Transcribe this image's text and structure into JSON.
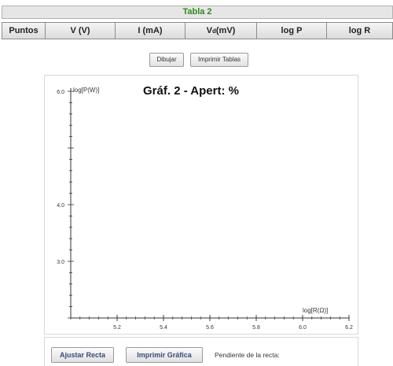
{
  "table": {
    "title": "Tabla 2",
    "columns": [
      {
        "label": "Puntos"
      },
      {
        "label": "V (V)"
      },
      {
        "label": "I (mA)"
      },
      {
        "label": "V",
        "sub": "d",
        "suffix": " (mV)"
      },
      {
        "label": "log P"
      },
      {
        "label": "log R"
      }
    ]
  },
  "toolbar": {
    "draw_label": "Dibujar",
    "print_tables_label": "Imprimir Tablas"
  },
  "chart_data": {
    "type": "scatter",
    "title": "Gráf. 2 - Apert:  %",
    "ylabel": "log[P(W)]",
    "xlabel": "log[R(Ω)]",
    "x_ticks": [
      "5.2",
      "5.4",
      "5.6",
      "5.8",
      "6.0",
      "6.2"
    ],
    "y_ticks": [
      "6.0",
      "4.0",
      "3.0"
    ],
    "xlim": [
      5.0,
      6.2
    ],
    "ylim": [
      2.0,
      6.0
    ],
    "series": []
  },
  "bottom": {
    "fit_label": "Ajustar Recta",
    "print_chart_label": "Imprimir Gráfica",
    "slope_label": "Pendiente de la recta:"
  }
}
